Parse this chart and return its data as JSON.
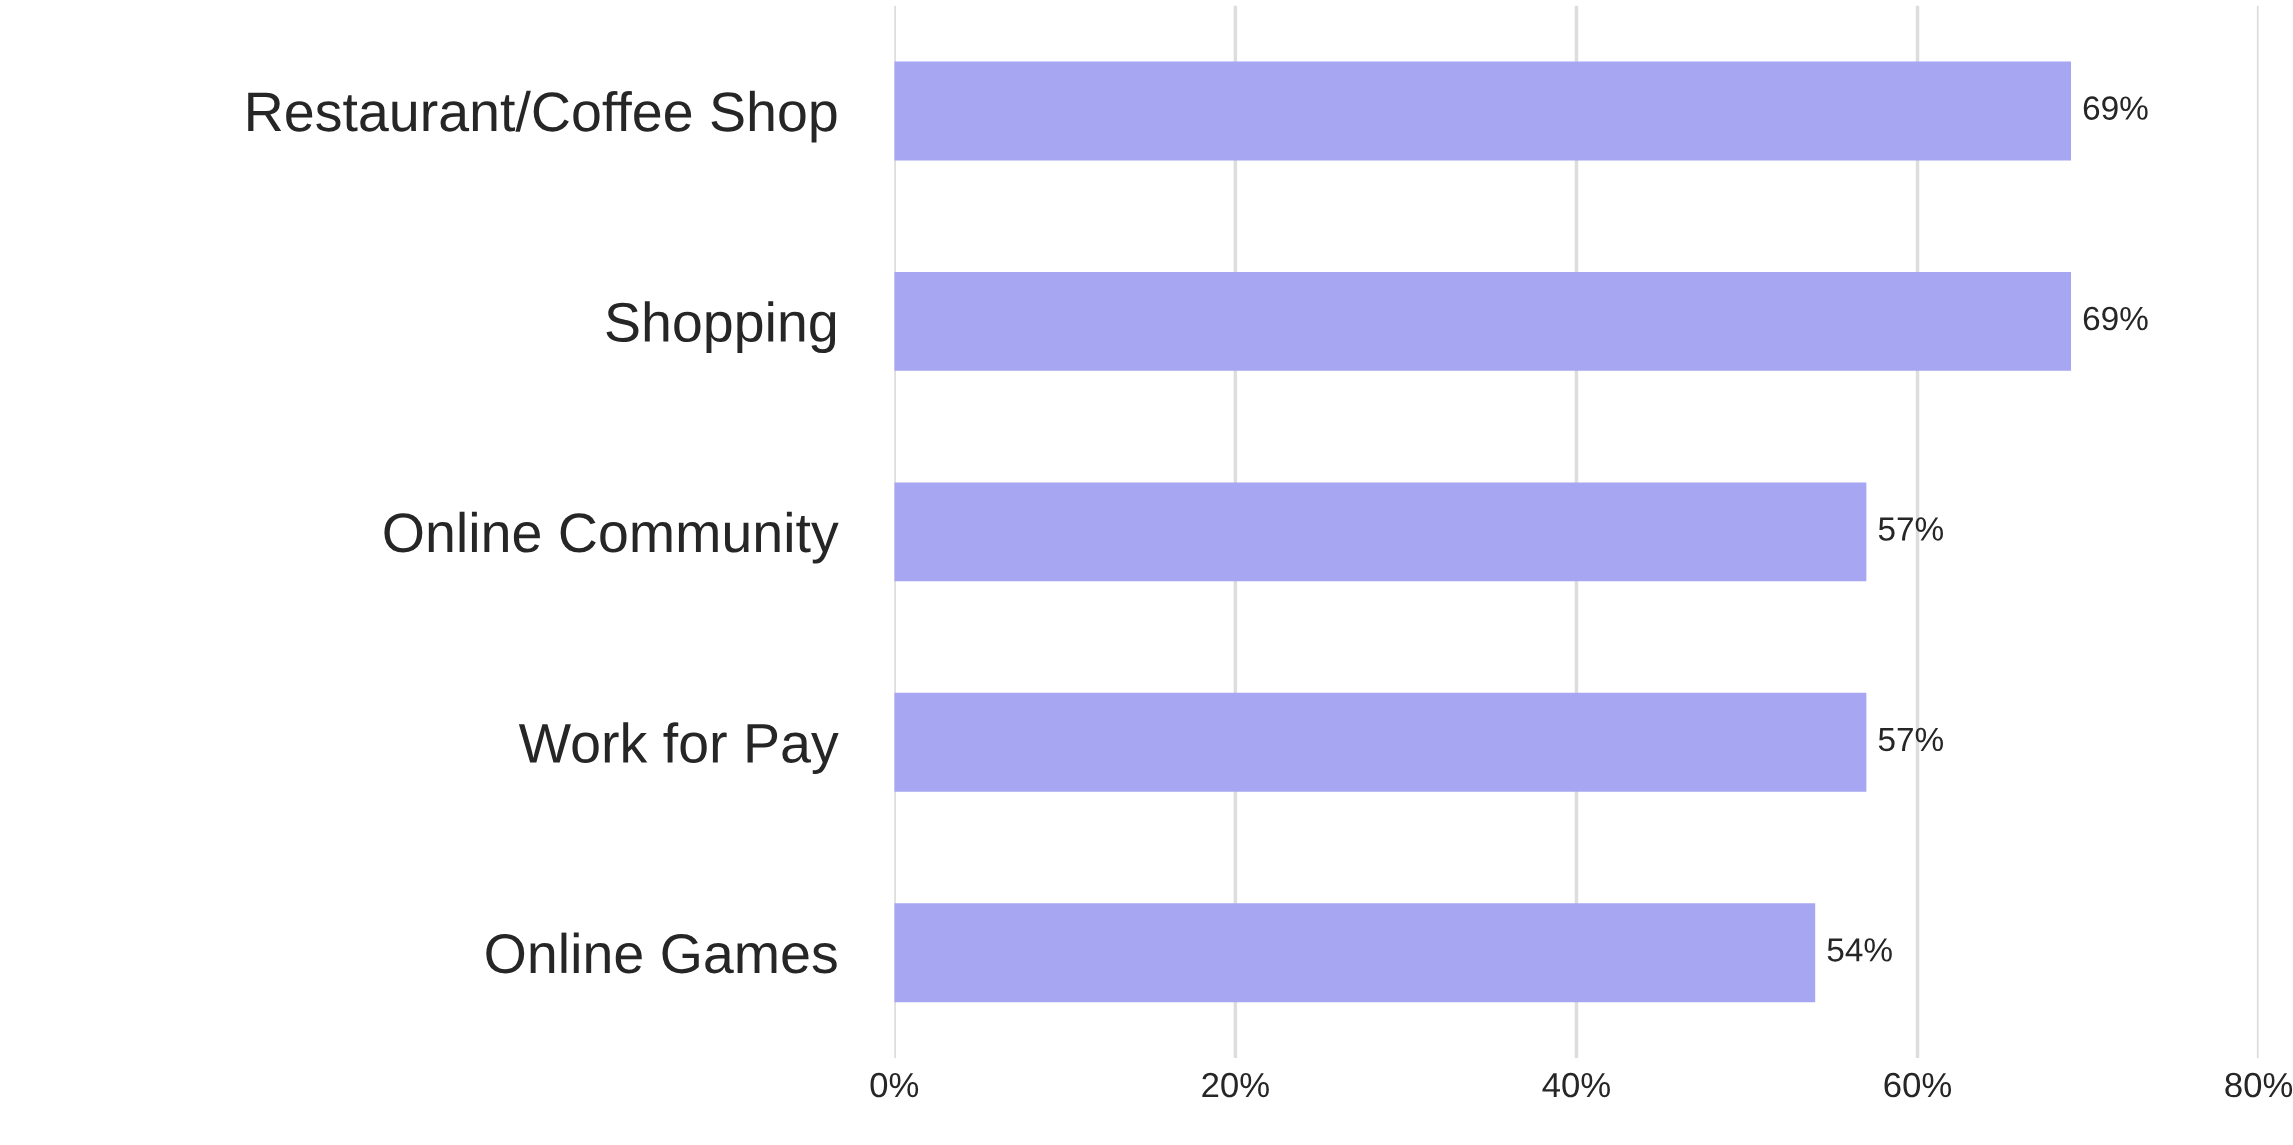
{
  "chart_data": {
    "type": "bar",
    "orientation": "horizontal",
    "categories": [
      "Restaurant/Coffee Shop",
      "Shopping",
      "Online Community",
      "Work for Pay",
      "Online Games"
    ],
    "values": [
      69,
      69,
      57,
      57,
      54
    ],
    "value_labels": [
      "69%",
      "69%",
      "57%",
      "57%",
      "54%"
    ],
    "color": "#9999ff",
    "xlim": [
      0,
      80
    ],
    "xticks": [
      {
        "value": 0,
        "label": "0%"
      },
      {
        "value": 20,
        "label": "20%"
      },
      {
        "value": 40,
        "label": "40%"
      },
      {
        "value": 60,
        "label": "60%"
      },
      {
        "value": 80,
        "label": "80%"
      }
    ],
    "grid": "x",
    "legend": false
  }
}
